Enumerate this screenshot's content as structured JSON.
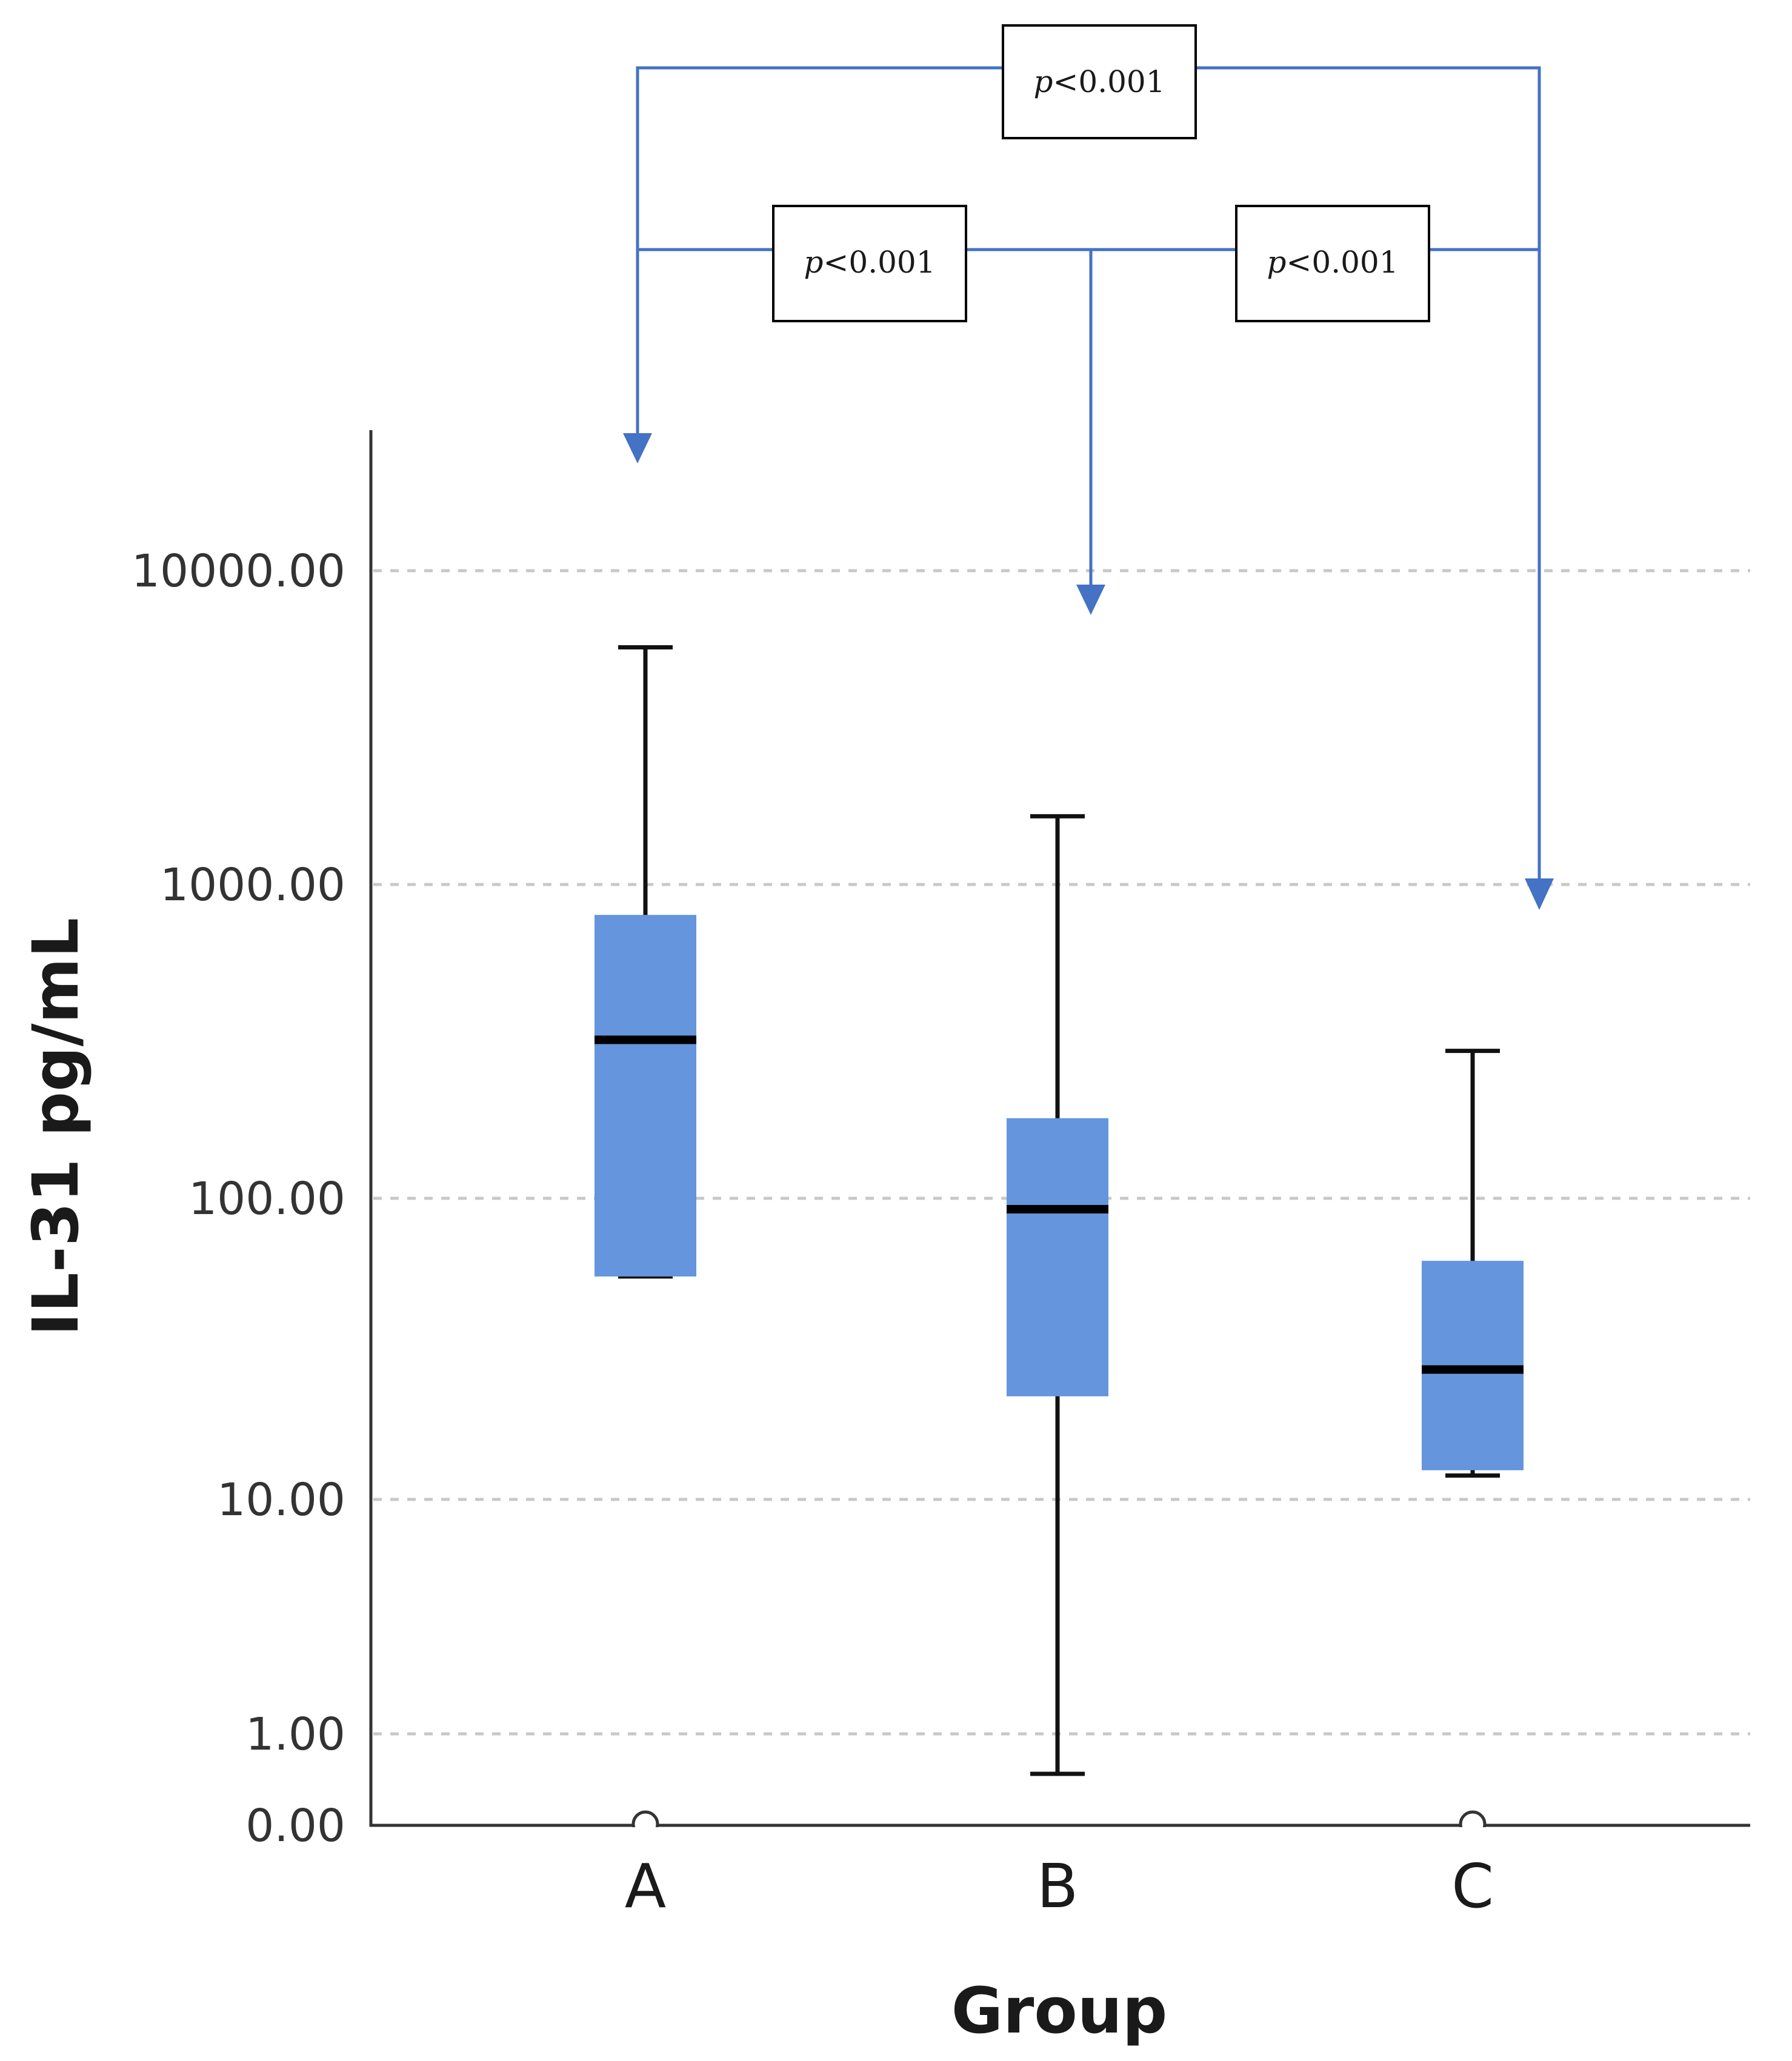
{
  "chart_data": {
    "type": "box",
    "title": "",
    "xlabel": "Group",
    "ylabel": "IL-31 pg/mL",
    "yscale": "log",
    "yticks": [
      {
        "value": 10000,
        "label": "10000.00"
      },
      {
        "value": 1000,
        "label": "1000.00"
      },
      {
        "value": 100,
        "label": "100.00"
      },
      {
        "value": 10,
        "label": "10.00"
      },
      {
        "value": 1,
        "label": "1.00"
      },
      {
        "value": 0,
        "label": "0.00"
      }
    ],
    "grid": true,
    "categories": [
      "A",
      "B",
      "C"
    ],
    "boxes": [
      {
        "group": "A",
        "whisker_low": 55,
        "q1": 55,
        "median": 320,
        "q3": 800,
        "whisker_high": 5700,
        "outliers": [
          0
        ]
      },
      {
        "group": "B",
        "whisker_low": 0.5,
        "q1": 22,
        "median": 92,
        "q3": 180,
        "whisker_high": 1650,
        "outliers": []
      },
      {
        "group": "C",
        "whisker_low": 12,
        "q1": 12.5,
        "median": 27,
        "q3": 62,
        "whisker_high": 295,
        "outliers": [
          0
        ]
      }
    ],
    "colors": {
      "box": "#6495dd",
      "bracket": "#4472c4",
      "median": "#000000"
    },
    "comparisons": [
      {
        "groups": [
          "A",
          "C"
        ],
        "p_symbol": "p",
        "p_text": "<0.001"
      },
      {
        "groups": [
          "A",
          "B"
        ],
        "p_symbol": "p",
        "p_text": "<0.001"
      },
      {
        "groups": [
          "B",
          "C"
        ],
        "p_symbol": "p",
        "p_text": "<0.001"
      }
    ]
  }
}
